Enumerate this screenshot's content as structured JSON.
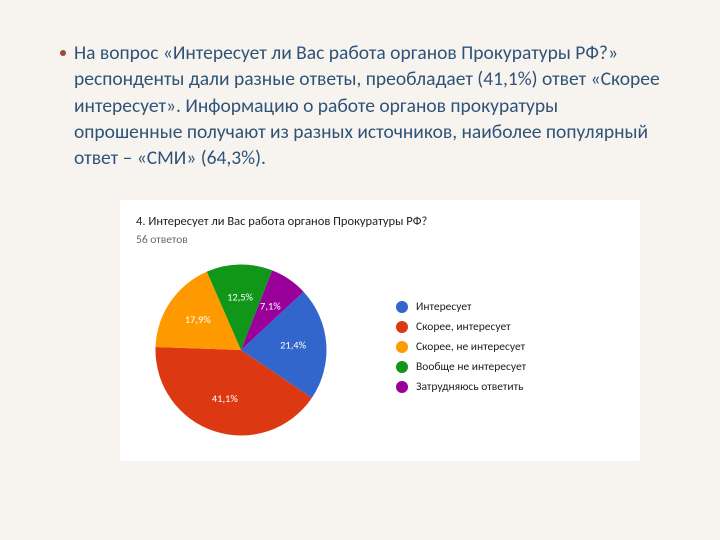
{
  "slide_background": "#f7f4ef",
  "bullet": {
    "dot_color": "#9a4a3d",
    "text_color": "#2f5378",
    "text_fontsize": 19.5,
    "text": "На вопрос «Интересует ли Вас работа органов Прокуратуры РФ?» респонденты дали разные ответы, преобладает (41,1%) ответ «Скорее интересует». Информацию о работе органов прокуратуры опрошенные получают из разных источников, наиболее популярный ответ – «СМИ» (64,3%)."
  },
  "chart": {
    "type": "pie",
    "card_background": "#ffffff",
    "title": "4. Интересует ли Вас работа органов Прокуратуры РФ?",
    "title_color": "#202020",
    "title_fontsize": 12.5,
    "subtitle": "56 ответов",
    "subtitle_color": "#6a6a6a",
    "subtitle_fontsize": 11.5,
    "label_text_color": "#ffffff",
    "label_fontsize": 11,
    "legend_fontsize": 11.5,
    "slices": [
      {
        "label": "Интересует",
        "value": 21.4,
        "display": "21,4%",
        "color": "#3366cc"
      },
      {
        "label": "Скорее, интересует",
        "value": 41.1,
        "display": "41,1%",
        "color": "#dc3912"
      },
      {
        "label": "Скорее, не интересует",
        "value": 17.9,
        "display": "17,9%",
        "color": "#ff9900"
      },
      {
        "label": "Вообще не интересует",
        "value": 12.5,
        "display": "12,5%",
        "color": "#109618"
      },
      {
        "label": "Затрудняюсь ответить",
        "value": 7.1,
        "display": "7,1%",
        "color": "#990099"
      }
    ]
  }
}
